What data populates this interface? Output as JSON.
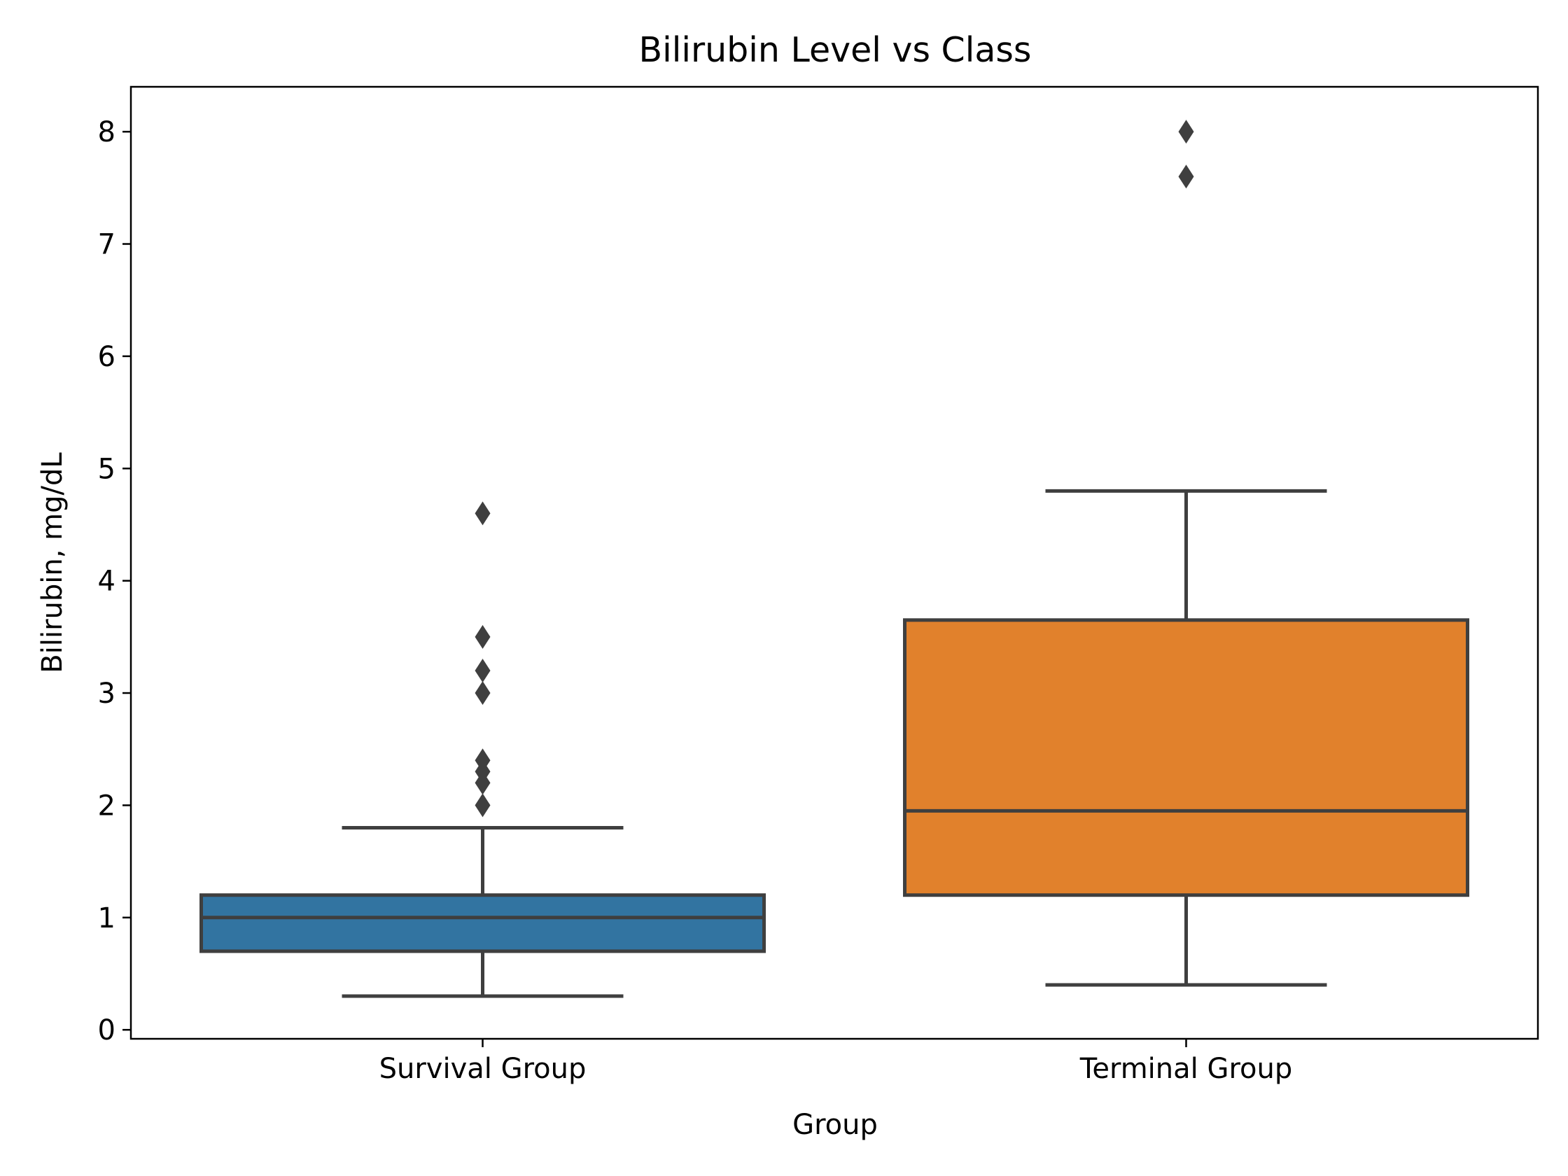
{
  "chart_data": {
    "type": "box",
    "title": "Bilirubin Level vs Class",
    "xlabel": "Group",
    "ylabel": "Bilirubin, mg/dL",
    "categories": [
      "Survival Group",
      "Terminal Group"
    ],
    "yticks": [
      0,
      1,
      2,
      3,
      4,
      5,
      6,
      7,
      8
    ],
    "ylim": [
      -0.08,
      8.4
    ],
    "grid": false,
    "boxes": [
      {
        "category": "Survival Group",
        "whisker_low": 0.3,
        "q1": 0.7,
        "median": 1.0,
        "q3": 1.2,
        "whisker_high": 1.8,
        "outliers": [
          2.0,
          2.2,
          2.3,
          2.4,
          3.0,
          3.2,
          3.5,
          4.6
        ],
        "color": "#3274a1"
      },
      {
        "category": "Terminal Group",
        "whisker_low": 0.4,
        "q1": 1.2,
        "median": 1.95,
        "q3": 3.65,
        "whisker_high": 4.8,
        "outliers": [
          7.6,
          8.0
        ],
        "color": "#e1812c"
      }
    ],
    "line_color": "#3f3f3f"
  }
}
